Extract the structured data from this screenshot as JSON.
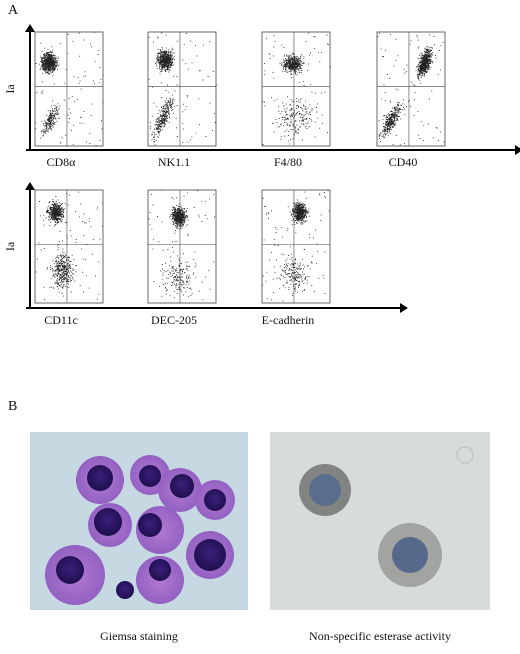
{
  "panel_a": {
    "label": "A",
    "rows": [
      {
        "y_label": "Ia",
        "markers": [
          "CD8α",
          "NK1.1",
          "F4/80",
          "CD40"
        ]
      },
      {
        "y_label": "Ia",
        "markers": [
          "CD11c",
          "DEC-205",
          "E-cadherin"
        ]
      }
    ]
  },
  "panel_b": {
    "label": "B",
    "images": [
      {
        "caption": "Giemsa staining"
      },
      {
        "caption": "Non-specific esterase activity"
      }
    ]
  }
}
